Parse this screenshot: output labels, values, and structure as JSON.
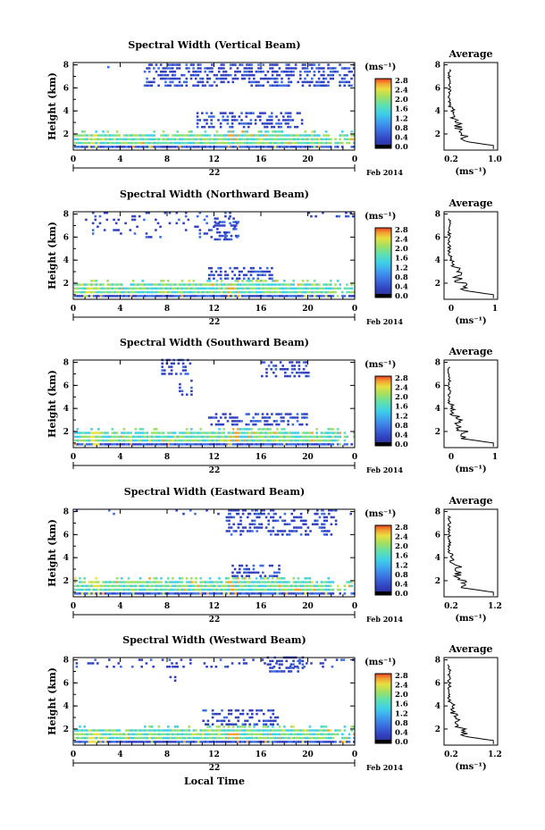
{
  "chart_data": [
    {
      "type": "heatmap",
      "title": "Spectral Width (Vertical Beam)",
      "ylabel": "Height (km)",
      "yticks": [
        "2",
        "4",
        "6",
        "8"
      ],
      "xticks": [
        "0",
        "4",
        "8",
        "12",
        "16",
        "20",
        "0"
      ],
      "day_label": "22",
      "date_label": "Feb 2014",
      "colorbar_unit": "(ms⁻¹)",
      "colorbar_ticks": [
        "0.0",
        "0.4",
        "0.8",
        "1.2",
        "1.6",
        "2.0",
        "2.4",
        "2.8"
      ],
      "avg_title": "Average",
      "avg_xticks": [
        "0.2",
        "1.0"
      ],
      "avg_xlabel": "(ms⁻¹)",
      "avg_yticks": [
        "2",
        "4",
        "6",
        "8"
      ]
    },
    {
      "type": "heatmap",
      "title": "Spectral Width (Northward Beam)",
      "ylabel": "Height (km)",
      "yticks": [
        "2",
        "4",
        "6",
        "8"
      ],
      "xticks": [
        "0",
        "4",
        "8",
        "12",
        "16",
        "20",
        "0"
      ],
      "day_label": "22",
      "date_label": "Feb 2014",
      "colorbar_unit": "(ms⁻¹)",
      "colorbar_ticks": [
        "0.0",
        "0.4",
        "0.8",
        "1.2",
        "1.6",
        "2.0",
        "2.4",
        "2.8"
      ],
      "avg_title": "Average",
      "avg_xticks": [
        "0",
        "1"
      ],
      "avg_xlabel": "(ms⁻¹)",
      "avg_yticks": [
        "2",
        "4",
        "6",
        "8"
      ]
    },
    {
      "type": "heatmap",
      "title": "Spectral Width (Southward Beam)",
      "ylabel": "Height (km)",
      "yticks": [
        "2",
        "4",
        "6",
        "8"
      ],
      "xticks": [
        "0",
        "4",
        "8",
        "12",
        "16",
        "20",
        "0"
      ],
      "day_label": "22",
      "date_label": "Feb 2014",
      "colorbar_unit": "(ms⁻¹)",
      "colorbar_ticks": [
        "0.0",
        "0.4",
        "0.8",
        "1.2",
        "1.6",
        "2.0",
        "2.4",
        "2.8"
      ],
      "avg_title": "Average",
      "avg_xticks": [
        "0",
        "1"
      ],
      "avg_xlabel": "(ms⁻¹)",
      "avg_yticks": [
        "2",
        "4",
        "6",
        "8"
      ]
    },
    {
      "type": "heatmap",
      "title": "Spectral Width (Eastward Beam)",
      "ylabel": "Height (km)",
      "yticks": [
        "2",
        "4",
        "6",
        "8"
      ],
      "xticks": [
        "0",
        "4",
        "8",
        "12",
        "16",
        "20",
        "0"
      ],
      "day_label": "22",
      "date_label": "Feb 2014",
      "colorbar_unit": "(ms⁻¹)",
      "colorbar_ticks": [
        "0.0",
        "0.4",
        "0.8",
        "1.2",
        "1.6",
        "2.0",
        "2.4",
        "2.8"
      ],
      "avg_title": "Average",
      "avg_xticks": [
        "0.2",
        "1.2"
      ],
      "avg_xlabel": "(ms⁻¹)",
      "avg_yticks": [
        "2",
        "4",
        "6",
        "8"
      ]
    },
    {
      "type": "heatmap",
      "title": "Spectral Width (Westward Beam)",
      "ylabel": "Height (km)",
      "yticks": [
        "2",
        "4",
        "6",
        "8"
      ],
      "xticks": [
        "0",
        "4",
        "8",
        "12",
        "16",
        "20",
        "0"
      ],
      "day_label": "22",
      "date_label": "Feb 2014",
      "colorbar_unit": "(ms⁻¹)",
      "colorbar_ticks": [
        "0.0",
        "0.4",
        "0.8",
        "1.2",
        "1.6",
        "2.0",
        "2.4",
        "2.8"
      ],
      "avg_title": "Average",
      "avg_xticks": [
        "0.2",
        "1.2"
      ],
      "avg_xlabel": "(ms⁻¹)",
      "avg_yticks": [
        "2",
        "4",
        "6",
        "8"
      ]
    }
  ],
  "xlabel": "Local Time",
  "colors": {
    "colormap": [
      "#2b2f8a",
      "#3140c0",
      "#3a6ee0",
      "#3fa0f0",
      "#3ed0e8",
      "#5ee0b0",
      "#a0e060",
      "#e8e040",
      "#f4a030",
      "#e84020"
    ]
  }
}
